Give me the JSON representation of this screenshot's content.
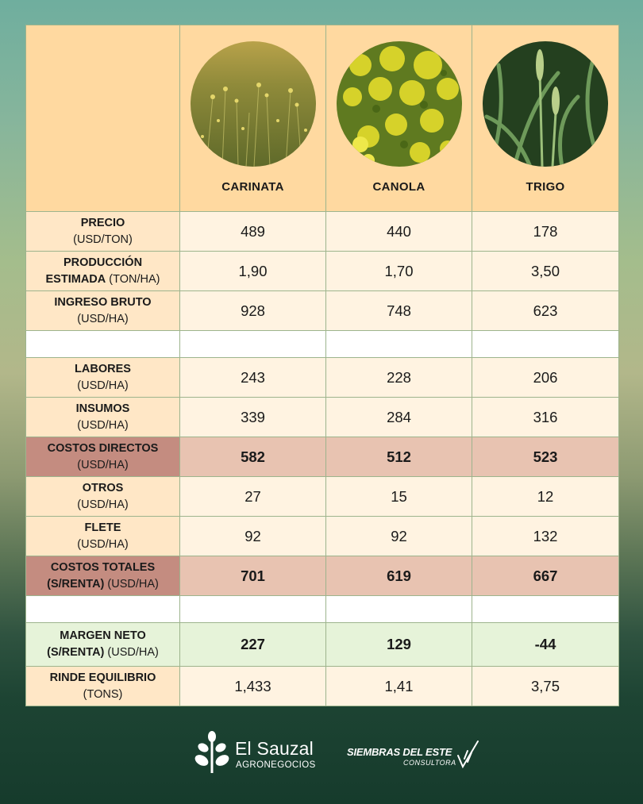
{
  "crops": [
    {
      "name": "CARINATA",
      "image": "carinata-field-photo"
    },
    {
      "name": "CANOLA",
      "image": "canola-flowers-photo"
    },
    {
      "name": "TRIGO",
      "image": "wheat-field-photo"
    }
  ],
  "rows": {
    "precio": {
      "label_bold": "PRECIO",
      "label_unit": "(USD/TON)",
      "values": [
        "489",
        "440",
        "178"
      ]
    },
    "produccion": {
      "label_bold_1": "PRODUCCIÓN",
      "label_bold_2": "ESTIMADA",
      "label_unit": "(TON/HA)",
      "values": [
        "1,90",
        "1,70",
        "3,50"
      ]
    },
    "ingreso": {
      "label_bold": "INGRESO BRUTO",
      "label_unit": "(USD/HA)",
      "values": [
        "928",
        "748",
        "623"
      ]
    },
    "labores": {
      "label_bold": "LABORES",
      "label_unit": "(USD/HA)",
      "values": [
        "243",
        "228",
        "206"
      ]
    },
    "insumos": {
      "label_bold": "INSUMOS",
      "label_unit": "(USD/HA)",
      "values": [
        "339",
        "284",
        "316"
      ]
    },
    "costos_directos": {
      "label_bold": "COSTOS DIRECTOS",
      "label_unit": "(USD/HA)",
      "values": [
        "582",
        "512",
        "523"
      ]
    },
    "otros": {
      "label_bold": "OTROS",
      "label_unit": "(USD/HA)",
      "values": [
        "27",
        "15",
        "12"
      ]
    },
    "flete": {
      "label_bold": "FLETE",
      "label_unit": "(USD/HA)",
      "values": [
        "92",
        "92",
        "132"
      ]
    },
    "costos_totales": {
      "label_bold_1": "COSTOS TOTALES",
      "label_bold_2": "(S/RENTA)",
      "label_unit": "(USD/HA)",
      "values": [
        "701",
        "619",
        "667"
      ]
    },
    "margen_neto": {
      "label_bold_1": "MARGEN NETO",
      "label_bold_2": "(S/RENTA)",
      "label_unit": "(USD/HA)",
      "values": [
        "227",
        "129",
        "-44"
      ]
    },
    "rinde": {
      "label_bold": "RINDE EQUILIBRIO",
      "label_unit": "(TONS)",
      "values": [
        "1,433",
        "1,41",
        "3,75"
      ]
    }
  },
  "colors": {
    "positive": "#1d9b49",
    "negative": "#ec4b4b",
    "header": "#ffd9a0",
    "cost_label": "#c48c80"
  },
  "logos": {
    "sauzal_name": "El Sauzal",
    "sauzal_sub": "AGRONEGOCIOS",
    "siembras_name": "SIEMBRAS DEL ESTE",
    "siembras_sub": "CONSULTORA"
  }
}
